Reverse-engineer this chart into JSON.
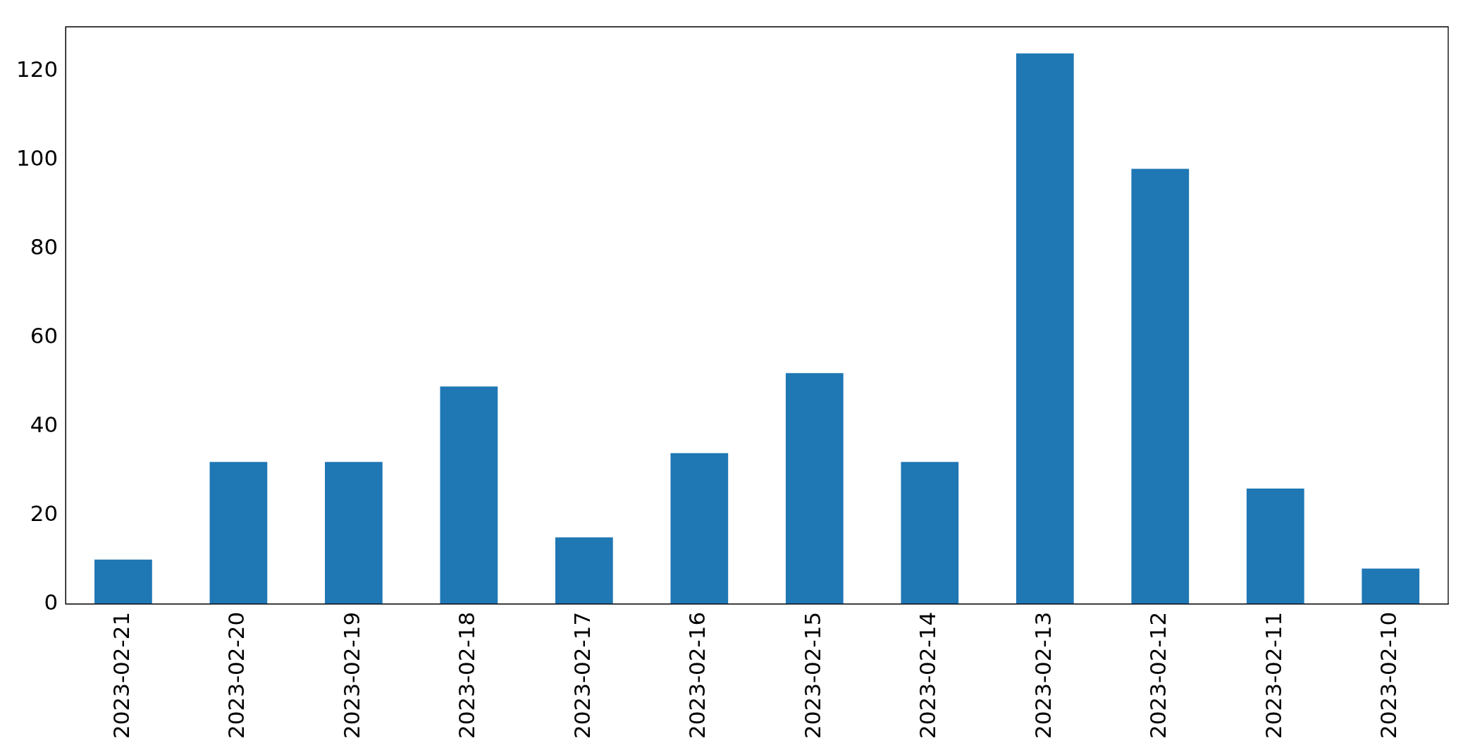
{
  "chart_data": {
    "type": "bar",
    "categories": [
      "2023-02-21",
      "2023-02-20",
      "2023-02-19",
      "2023-02-18",
      "2023-02-17",
      "2023-02-16",
      "2023-02-15",
      "2023-02-14",
      "2023-02-13",
      "2023-02-12",
      "2023-02-11",
      "2023-02-10"
    ],
    "values": [
      10,
      32,
      32,
      49,
      15,
      34,
      52,
      32,
      124,
      98,
      26,
      8
    ],
    "color": "#1f77b4",
    "ylim": [
      0,
      130
    ],
    "yticks": [
      0,
      20,
      40,
      60,
      80,
      100,
      120
    ],
    "grid": false,
    "legend": false
  }
}
